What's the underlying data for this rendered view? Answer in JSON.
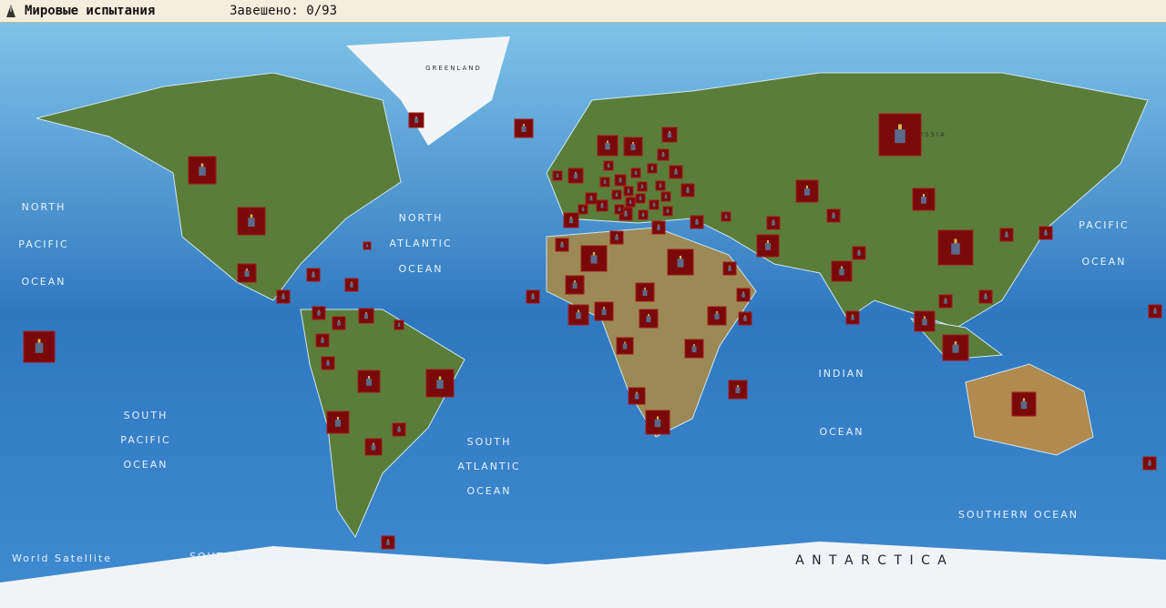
{
  "header": {
    "title": "Мировые испытания",
    "progress": "Завешено: 0/93"
  },
  "map": {
    "labels": [
      {
        "lines": [
          "GREENLAND"
        ]
      },
      {
        "lines": [
          "RUSSIA"
        ]
      },
      {
        "lines": [
          "NORTH",
          "PACIFIC",
          "OCEAN"
        ]
      },
      {
        "lines": [
          "NORTH",
          "ATLANTIC",
          "OCEAN"
        ]
      },
      {
        "lines": [
          "PACIFIC",
          "OCEAN"
        ]
      },
      {
        "lines": [
          "INDIAN",
          "OCEAN"
        ]
      },
      {
        "lines": [
          "SOUTH",
          "PACIFIC",
          "OCEAN"
        ]
      },
      {
        "lines": [
          "SOUTH",
          "ATLANTIC",
          "OCEAN"
        ]
      },
      {
        "lines": [
          "SOUTHERN OCEAN"
        ]
      },
      {
        "lines": [
          "SOUTHERN OCEAN"
        ]
      },
      {
        "lines": [
          "A N T A R C T I C A"
        ]
      },
      {
        "lines": [
          "World Satellite"
        ]
      }
    ]
  }
}
